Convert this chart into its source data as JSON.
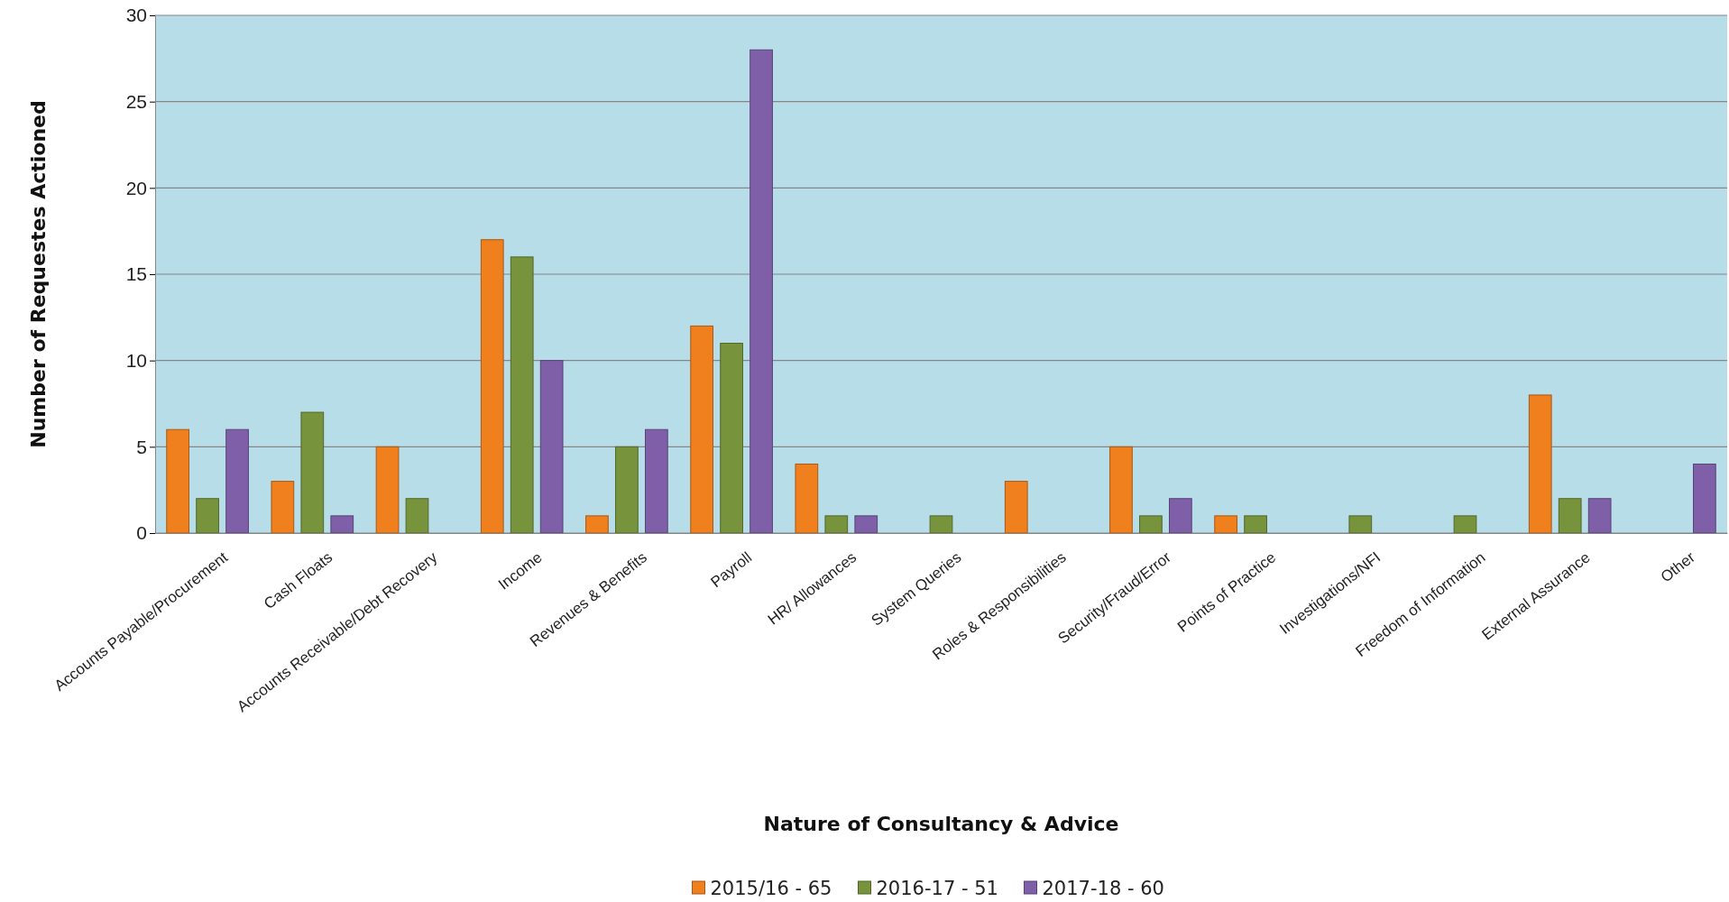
{
  "chart_data": {
    "type": "bar",
    "xlabel": "Nature of Consultancy & Advice",
    "ylabel": "Number of Requestes Actioned",
    "categories": [
      "Accounts Payable/Procurement",
      "Cash Floats",
      "Accounts Receivable/Debt Recovery",
      "Income",
      "Revenues & Benefits",
      "Payroll",
      "HR/ Allowances",
      "System Queries",
      "Roles & Responsibilities",
      "Security/Fraud/Error",
      "Points of Practice",
      "Investigations/NFI",
      "Freedom of Information",
      "External Assurance",
      "Other"
    ],
    "series": [
      {
        "name": "2015/16 - 65",
        "color": "#f07f1d",
        "values": [
          6,
          3,
          5,
          17,
          1,
          12,
          4,
          0,
          3,
          5,
          1,
          0,
          0,
          8,
          0
        ]
      },
      {
        "name": "2016-17 - 51",
        "color": "#77933c",
        "values": [
          2,
          7,
          2,
          16,
          5,
          11,
          1,
          1,
          0,
          1,
          1,
          1,
          1,
          2,
          0
        ]
      },
      {
        "name": "2017-18 - 60",
        "color": "#7f5fa8",
        "values": [
          6,
          1,
          0,
          10,
          6,
          28,
          1,
          0,
          0,
          2,
          0,
          0,
          0,
          2,
          4
        ]
      }
    ],
    "ylim": [
      0,
      30
    ],
    "yticks": [
      0,
      5,
      10,
      15,
      20,
      25,
      30
    ],
    "grid": "y",
    "legend": "bottom"
  }
}
